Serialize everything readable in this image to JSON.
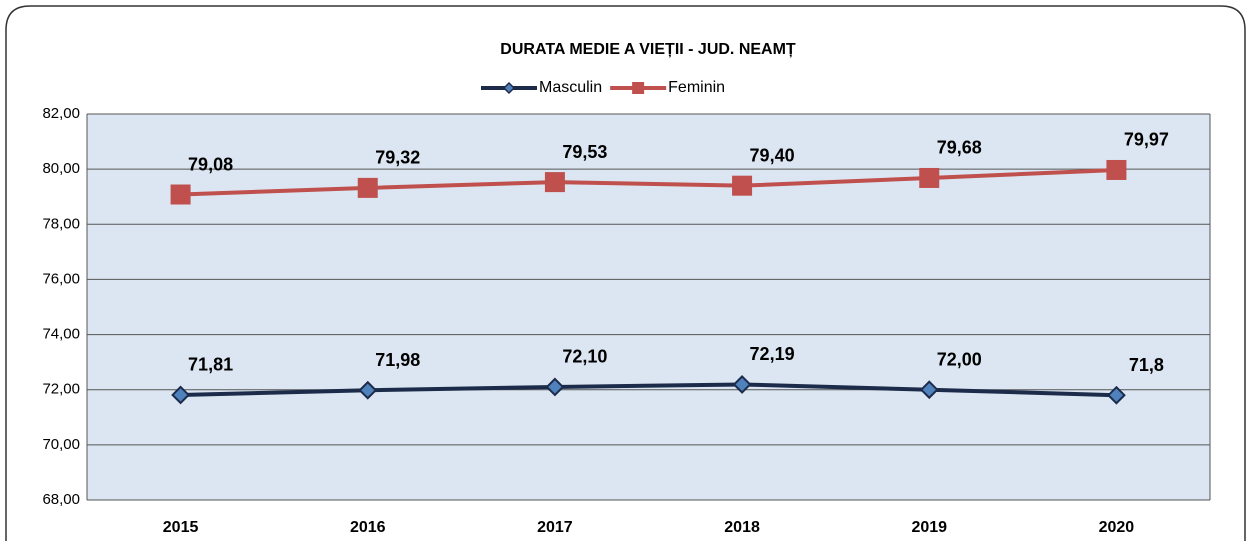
{
  "chart_data": {
    "type": "line",
    "title": "DURATA MEDIE A VIEȚII - JUD. NEAMȚ",
    "categories": [
      "2015",
      "2016",
      "2017",
      "2018",
      "2019",
      "2020"
    ],
    "series": [
      {
        "name": "Masculin",
        "color": "#1c2b4a",
        "values": [
          71.81,
          71.98,
          72.1,
          72.19,
          72.0,
          71.8
        ],
        "value_labels": [
          "71,81",
          "71,98",
          "72,10",
          "72,19",
          "72,00",
          "71,8"
        ]
      },
      {
        "name": "Feminin",
        "color": "#c0504d",
        "values": [
          79.08,
          79.32,
          79.53,
          79.4,
          79.68,
          79.97
        ],
        "value_labels": [
          "79,08",
          "79,32",
          "79,53",
          "79,40",
          "79,68",
          "79,97"
        ]
      }
    ],
    "ylim": [
      68,
      82
    ],
    "yticks": [
      {
        "value": 68,
        "label": "68,00"
      },
      {
        "value": 70,
        "label": "70,00"
      },
      {
        "value": 72,
        "label": "72,00"
      },
      {
        "value": 74,
        "label": "74,00"
      },
      {
        "value": 76,
        "label": "76,00"
      },
      {
        "value": 78,
        "label": "78,00"
      },
      {
        "value": 80,
        "label": "80,00"
      },
      {
        "value": 82,
        "label": "82,00"
      }
    ],
    "grid": true,
    "legend": "top"
  }
}
